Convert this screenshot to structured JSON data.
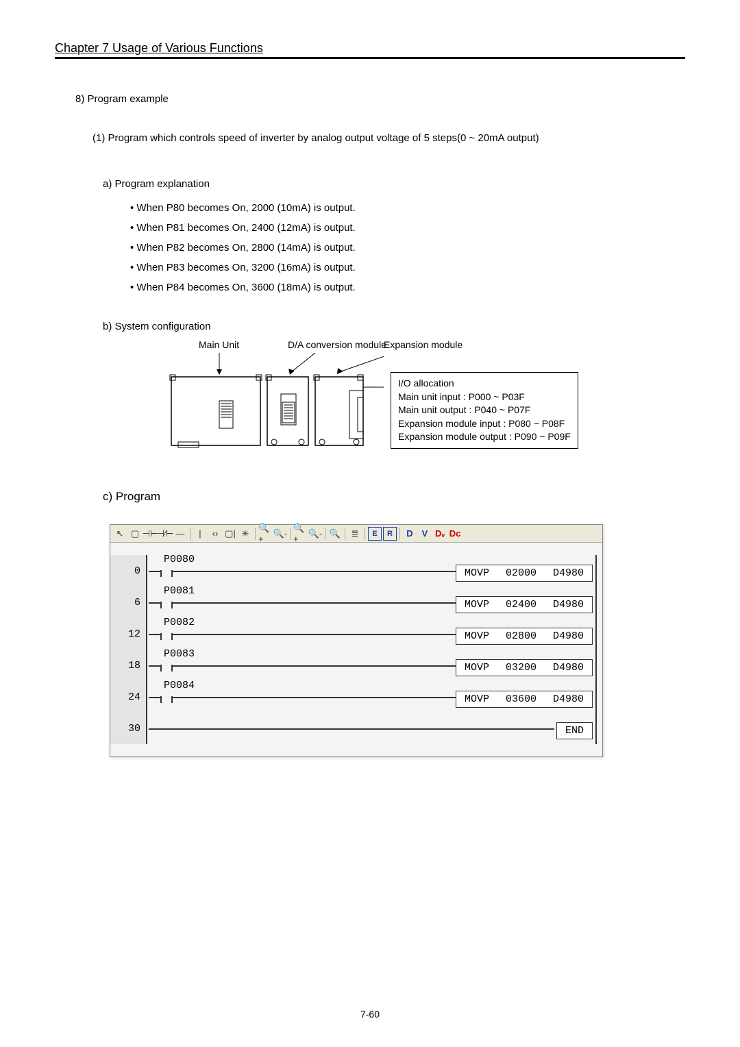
{
  "header": {
    "chapter_title": "Chapter 7    Usage of Various Functions"
  },
  "section8": {
    "title": "8) Program example"
  },
  "sub1": {
    "text": "(1) Program which controls speed of inverter by analog output voltage of 5 steps(0 ~ 20mA output)"
  },
  "subA": {
    "title": "a) Program explanation",
    "bullets": [
      "When P80 becomes On, 2000 (10mA) is output.",
      "When P81 becomes On, 2400 (12mA) is output.",
      "When P82 becomes On, 2800 (14mA) is output.",
      "When P83 becomes On, 3200 (16mA) is output.",
      "When P84 becomes On, 3600 (18mA) is output."
    ]
  },
  "subB": {
    "title": "b) System configuration",
    "labels": {
      "main": "Main Unit",
      "da": "D/A conversion module",
      "exp": "Expansion module"
    },
    "io": {
      "line1": "I/O allocation",
      "line2": "Main unit input : P000 ~ P03F",
      "line3": "Main unit output : P040 ~ P07F",
      "line4": "Expansion module input : P080 ~ P08F",
      "line5": "Expansion module output : P090 ~ P09F"
    }
  },
  "subC": {
    "title": "c) Program"
  },
  "toolbar": {
    "icons": [
      "↖",
      "▢",
      "⊣⊢",
      "⊣⁄⊢",
      "—",
      "|",
      "‹›",
      "▢|",
      "✳",
      "🔍+",
      "🔍-",
      "🔍+",
      "🔍-",
      "🔍",
      "≣"
    ],
    "blue_e": "E",
    "blue_r": "R",
    "blue_d": "D",
    "blue_v": "V",
    "red_dv": "Dᵥ",
    "red_dc": "Dc"
  },
  "ladder": {
    "rows": [
      {
        "step": "0",
        "contact": "P0080",
        "op": "MOVP",
        "src": "02000",
        "dst": "D4980"
      },
      {
        "step": "6",
        "contact": "P0081",
        "op": "MOVP",
        "src": "02400",
        "dst": "D4980"
      },
      {
        "step": "12",
        "contact": "P0082",
        "op": "MOVP",
        "src": "02800",
        "dst": "D4980"
      },
      {
        "step": "18",
        "contact": "P0083",
        "op": "MOVP",
        "src": "03200",
        "dst": "D4980"
      },
      {
        "step": "24",
        "contact": "P0084",
        "op": "MOVP",
        "src": "03600",
        "dst": "D4980"
      }
    ],
    "end": {
      "step": "30",
      "label": "END"
    }
  },
  "footer": {
    "page": "7-60"
  },
  "colors": {
    "toolbar_bg": "#ece9d8",
    "ladder_bg": "#f4f4f4",
    "step_bg": "#e4e4e4",
    "line": "#333333"
  }
}
